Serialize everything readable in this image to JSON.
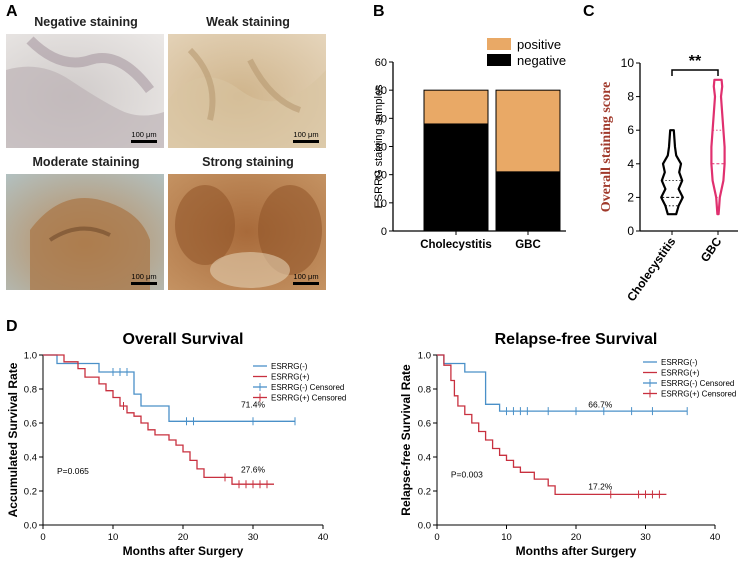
{
  "panel_letters": {
    "a": "A",
    "b": "B",
    "c": "C",
    "d": "D"
  },
  "panel_a": {
    "photos": [
      {
        "label": "Negative staining",
        "scale_bar": "100 μm",
        "tissue": "negative"
      },
      {
        "label": "Weak staining",
        "scale_bar": "100 μm",
        "tissue": "weak"
      },
      {
        "label": "Moderate staining",
        "scale_bar": "100 μm",
        "tissue": "moderate"
      },
      {
        "label": "Strong staining",
        "scale_bar": "100 μm",
        "tissue": "strong"
      }
    ]
  },
  "colors": {
    "positive": "#e9a966",
    "negative": "#000000",
    "violin_cholecystitis": "#000000",
    "violin_gbc": "#e0306f",
    "ylabel_c": "#a0392b",
    "km_neg": "#4a90c8",
    "km_pos": "#c8303f"
  },
  "chart_data": [
    {
      "id": "B",
      "type": "bar",
      "stacked": true,
      "categories": [
        "Cholecystitis",
        "GBC"
      ],
      "series": [
        {
          "name": "negative",
          "values": [
            38,
            21
          ]
        },
        {
          "name": "positive",
          "values": [
            12,
            29
          ]
        }
      ],
      "legend": [
        "positive",
        "negative"
      ],
      "ylabel": "ESRRG staining samples",
      "ylim": [
        0,
        60
      ],
      "yticks": [
        0,
        10,
        20,
        30,
        40,
        50,
        60
      ]
    },
    {
      "id": "C",
      "type": "violin",
      "categories": [
        "Cholecystitis",
        "GBC"
      ],
      "ylabel": "Overall staining score",
      "ylim": [
        0,
        10
      ],
      "yticks": [
        0,
        2,
        4,
        6,
        8,
        10
      ],
      "significance": "**",
      "violins": [
        {
          "name": "Cholecystitis",
          "min": 1,
          "max": 6,
          "median": 2,
          "q1": 1.5,
          "q3": 3,
          "profile": [
            [
              1,
              0.35
            ],
            [
              1.5,
              0.55
            ],
            [
              2,
              0.9
            ],
            [
              2.5,
              0.55
            ],
            [
              3,
              0.85
            ],
            [
              3.5,
              0.6
            ],
            [
              4,
              0.75
            ],
            [
              4.5,
              0.35
            ],
            [
              5,
              0.25
            ],
            [
              5.5,
              0.2
            ],
            [
              6,
              0.15
            ]
          ]
        },
        {
          "name": "GBC",
          "min": 1,
          "max": 9,
          "median": 4,
          "q1": 2,
          "q3": 6,
          "profile": [
            [
              1,
              0.05
            ],
            [
              2,
              0.15
            ],
            [
              3,
              0.45
            ],
            [
              4,
              0.55
            ],
            [
              5,
              0.55
            ],
            [
              6,
              0.45
            ],
            [
              7,
              0.35
            ],
            [
              8,
              0.25
            ],
            [
              8.6,
              0.35
            ],
            [
              9,
              0.3
            ]
          ]
        }
      ]
    },
    {
      "id": "D-left",
      "type": "line",
      "subtype": "kaplan-meier",
      "title": "Overall Survival",
      "xlabel": "Months after Surgery",
      "ylabel": "Accumulated Survival Rate",
      "xlim": [
        0,
        40
      ],
      "ylim": [
        0,
        1.0
      ],
      "xticks": [
        0,
        10,
        20,
        30,
        40
      ],
      "yticks": [
        0.0,
        0.2,
        0.4,
        0.6,
        0.8,
        1.0
      ],
      "legend": [
        "ESRRG(-)",
        "ESRRG(+)",
        "ESRRG(-) Censored",
        "ESRRG(+) Censored"
      ],
      "pvalue": "P=0.065",
      "annotations": [
        "71.4%",
        "27.6%"
      ],
      "series": [
        {
          "name": "ESRRG(-)",
          "color_key": "km_neg",
          "steps": [
            [
              0,
              1.0
            ],
            [
              2,
              0.95
            ],
            [
              8,
              0.9
            ],
            [
              13,
              0.77
            ],
            [
              14,
              0.7
            ],
            [
              18,
              0.61
            ],
            [
              36,
              0.61
            ]
          ],
          "censored": [
            [
              10,
              0.9
            ],
            [
              11,
              0.9
            ],
            [
              12,
              0.9
            ],
            [
              20.5,
              0.61
            ],
            [
              21.5,
              0.61
            ],
            [
              30,
              0.61
            ],
            [
              36,
              0.61
            ]
          ]
        },
        {
          "name": "ESRRG(+)",
          "color_key": "km_pos",
          "steps": [
            [
              0,
              1.0
            ],
            [
              3,
              0.96
            ],
            [
              5,
              0.92
            ],
            [
              6,
              0.87
            ],
            [
              8,
              0.83
            ],
            [
              9,
              0.79
            ],
            [
              10,
              0.75
            ],
            [
              11,
              0.7
            ],
            [
              12,
              0.66
            ],
            [
              13,
              0.64
            ],
            [
              14,
              0.6
            ],
            [
              15,
              0.56
            ],
            [
              16,
              0.53
            ],
            [
              18,
              0.5
            ],
            [
              19,
              0.47
            ],
            [
              20,
              0.43
            ],
            [
              21,
              0.38
            ],
            [
              22,
              0.33
            ],
            [
              23,
              0.28
            ],
            [
              27,
              0.24
            ],
            [
              33,
              0.24
            ]
          ],
          "censored": [
            [
              11.5,
              0.7
            ],
            [
              26,
              0.28
            ],
            [
              28,
              0.24
            ],
            [
              29,
              0.24
            ],
            [
              30,
              0.24
            ],
            [
              31,
              0.24
            ],
            [
              32,
              0.24
            ]
          ]
        }
      ]
    },
    {
      "id": "D-right",
      "type": "line",
      "subtype": "kaplan-meier",
      "title": "Relapse-free Survival",
      "xlabel": "Months after Surgery",
      "ylabel": "Relapse-free Survival Rate",
      "xlim": [
        0,
        40
      ],
      "ylim": [
        0,
        1.0
      ],
      "xticks": [
        0,
        10,
        20,
        30,
        40
      ],
      "yticks": [
        0.0,
        0.2,
        0.4,
        0.6,
        0.8,
        1.0
      ],
      "legend": [
        "ESRRG(-)",
        "ESRRG(+)",
        "ESRRG(-) Censored",
        "ESRRG(+) Censored"
      ],
      "pvalue": "P=0.003",
      "annotations": [
        "66.7%",
        "17.2%"
      ],
      "series": [
        {
          "name": "ESRRG(-)",
          "color_key": "km_neg",
          "steps": [
            [
              0,
              1.0
            ],
            [
              1,
              0.95
            ],
            [
              4,
              0.9
            ],
            [
              7,
              0.71
            ],
            [
              9,
              0.67
            ],
            [
              36,
              0.67
            ]
          ],
          "censored": [
            [
              10,
              0.67
            ],
            [
              11,
              0.67
            ],
            [
              12,
              0.67
            ],
            [
              13,
              0.67
            ],
            [
              16,
              0.67
            ],
            [
              20,
              0.67
            ],
            [
              24,
              0.67
            ],
            [
              28,
              0.67
            ],
            [
              31,
              0.67
            ],
            [
              36,
              0.67
            ]
          ]
        },
        {
          "name": "ESRRG(+)",
          "color_key": "km_pos",
          "steps": [
            [
              0,
              1.0
            ],
            [
              1,
              0.94
            ],
            [
              2,
              0.85
            ],
            [
              2.5,
              0.76
            ],
            [
              3,
              0.7
            ],
            [
              4,
              0.65
            ],
            [
              5,
              0.6
            ],
            [
              6,
              0.55
            ],
            [
              7,
              0.5
            ],
            [
              8,
              0.45
            ],
            [
              9,
              0.41
            ],
            [
              10,
              0.38
            ],
            [
              11,
              0.34
            ],
            [
              12,
              0.31
            ],
            [
              14,
              0.27
            ],
            [
              16,
              0.23
            ],
            [
              17,
              0.18
            ],
            [
              33,
              0.18
            ]
          ],
          "censored": [
            [
              25,
              0.18
            ],
            [
              29,
              0.18
            ],
            [
              30,
              0.18
            ],
            [
              31,
              0.18
            ],
            [
              32,
              0.18
            ]
          ]
        }
      ]
    }
  ]
}
